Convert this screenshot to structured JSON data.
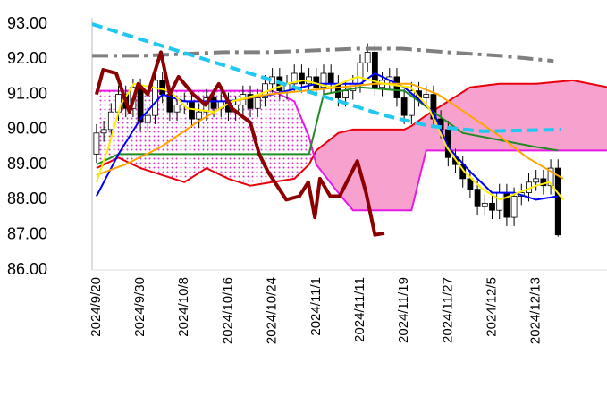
{
  "chart_data": {
    "type": "ichimoku",
    "xlim": [
      -0.6,
      69.8
    ],
    "xticks": [
      {
        "value": 0,
        "label": "2024/9/20"
      },
      {
        "value": 6,
        "label": "2024/9/30"
      },
      {
        "value": 12,
        "label": "2024/10/8"
      },
      {
        "value": 18,
        "label": "2024/10/16"
      },
      {
        "value": 24,
        "label": "2024/10/24"
      },
      {
        "value": 30,
        "label": "2024/11/1"
      },
      {
        "value": 36,
        "label": "2024/11/11"
      },
      {
        "value": 42,
        "label": "2024/11/19"
      },
      {
        "value": 48,
        "label": "2024/11/27"
      },
      {
        "value": 54,
        "label": "2024/12/5"
      },
      {
        "value": 60,
        "label": "2024/12/13"
      }
    ],
    "ylim": [
      86,
      93
    ],
    "yticks": [
      {
        "value": 86,
        "label": "86.00"
      },
      {
        "value": 87,
        "label": "87.00"
      },
      {
        "value": 88,
        "label": "88.00"
      },
      {
        "value": 89,
        "label": "89.00"
      },
      {
        "value": 90,
        "label": "90.00"
      },
      {
        "value": 91,
        "label": "91.00"
      },
      {
        "value": 92,
        "label": "92.00"
      },
      {
        "value": 93,
        "label": "93.00"
      }
    ],
    "cloud": {
      "up_color": "#f7a1cf",
      "down_color": "#d633c8",
      "a_color": "#e8000b",
      "b_color": "#e619e6",
      "x": [
        0,
        3,
        6,
        9,
        12,
        15,
        18,
        21,
        24,
        27,
        29,
        30,
        33,
        35,
        38,
        42,
        43,
        45,
        48,
        51,
        55,
        60,
        65,
        69.8
      ],
      "span_a": [
        88.9,
        89.2,
        88.9,
        88.7,
        88.5,
        88.9,
        88.6,
        88.4,
        88.5,
        88.6,
        89.0,
        89.4,
        89.9,
        90.0,
        90.0,
        90.0,
        90.1,
        90.4,
        90.8,
        91.2,
        91.3,
        91.3,
        91.4,
        91.2
      ],
      "span_b": [
        91.1,
        91.1,
        91.1,
        91.1,
        91.1,
        91.1,
        91.1,
        91.1,
        91.1,
        90.8,
        89.8,
        89.0,
        88.2,
        87.7,
        87.7,
        87.7,
        87.7,
        89.4,
        89.4,
        89.4,
        89.4,
        89.4,
        89.4,
        89.4
      ]
    },
    "candles": {
      "up_color": "#ffffff",
      "down_color": "#000000",
      "open": [
        89.3,
        89.9,
        90.0,
        90.5,
        91.0,
        90.6,
        91.2,
        90.2,
        90.4,
        91.4,
        91.0,
        90.5,
        90.7,
        90.8,
        90.3,
        90.5,
        90.9,
        90.6,
        90.8,
        90.5,
        90.7,
        91.0,
        90.6,
        90.9,
        91.3,
        91.5,
        91.1,
        91.3,
        91.6,
        91.3,
        91.5,
        91.2,
        91.6,
        91.3,
        90.9,
        91.1,
        91.3,
        91.9,
        92.2,
        91.2,
        91.4,
        91.5,
        90.9,
        90.4,
        91.1,
        90.9,
        91.0,
        90.3,
        90.0,
        89.2,
        89.0,
        88.6,
        88.3,
        87.8,
        87.9,
        87.7,
        88.2,
        87.5,
        88.1,
        88.2,
        88.5,
        88.6,
        88.4,
        88.9
      ],
      "high": [
        90.15,
        90.25,
        90.75,
        91.25,
        91.25,
        91.45,
        91.45,
        90.65,
        91.65,
        91.65,
        91.25,
        90.95,
        91.05,
        91.05,
        90.75,
        91.15,
        91.15,
        91.05,
        91.05,
        90.95,
        91.25,
        91.25,
        91.15,
        91.55,
        91.75,
        91.75,
        91.55,
        91.85,
        91.85,
        91.75,
        91.75,
        91.85,
        91.85,
        91.55,
        91.35,
        91.55,
        92.15,
        92.45,
        92.45,
        91.65,
        91.75,
        91.75,
        91.15,
        91.35,
        91.35,
        91.25,
        91.25,
        90.55,
        90.25,
        89.45,
        89.25,
        88.85,
        88.55,
        88.15,
        88.15,
        88.45,
        88.45,
        88.35,
        88.45,
        88.75,
        88.85,
        88.85,
        89.15,
        89.15
      ],
      "low": [
        89.05,
        89.65,
        89.75,
        90.25,
        90.35,
        90.35,
        89.95,
        89.95,
        90.15,
        90.75,
        90.25,
        90.25,
        90.45,
        90.05,
        90.05,
        90.25,
        90.35,
        90.35,
        90.25,
        90.25,
        90.45,
        90.35,
        90.35,
        90.65,
        91.05,
        90.85,
        90.85,
        91.05,
        91.05,
        91.05,
        90.95,
        90.95,
        91.05,
        90.65,
        90.65,
        90.85,
        91.05,
        91.65,
        90.95,
        90.95,
        91.15,
        90.65,
        90.15,
        90.15,
        90.65,
        90.65,
        90.05,
        89.75,
        88.95,
        88.75,
        88.35,
        88.05,
        87.55,
        87.55,
        87.45,
        87.45,
        87.25,
        87.25,
        87.85,
        87.95,
        88.25,
        88.15,
        88.15,
        86.95
      ],
      "close": [
        89.9,
        90.0,
        90.5,
        91.0,
        90.6,
        91.2,
        90.2,
        90.4,
        91.4,
        91.0,
        90.5,
        90.7,
        90.8,
        90.3,
        90.5,
        90.9,
        90.6,
        90.8,
        90.5,
        90.7,
        91.0,
        90.6,
        90.9,
        91.3,
        91.5,
        91.1,
        91.3,
        91.6,
        91.3,
        91.5,
        91.2,
        91.6,
        91.3,
        90.9,
        91.1,
        91.3,
        91.9,
        92.2,
        91.2,
        91.4,
        91.5,
        90.9,
        90.4,
        91.1,
        90.9,
        91.0,
        90.3,
        90.0,
        89.2,
        89.0,
        88.6,
        88.3,
        87.8,
        87.9,
        87.7,
        88.2,
        87.5,
        88.1,
        88.2,
        88.5,
        88.6,
        88.4,
        88.9,
        87.0
      ]
    },
    "lines": [
      {
        "color": "#228b22",
        "width": 2,
        "x": [
          0,
          3,
          29,
          31,
          36,
          42,
          46,
          50,
          55,
          60,
          63
        ],
        "values": [
          89.0,
          89.3,
          89.3,
          91.0,
          91.2,
          91.1,
          90.5,
          89.9,
          89.7,
          89.5,
          89.4
        ]
      },
      {
        "color": "#0000ff",
        "width": 2,
        "x": [
          0,
          3,
          6,
          9,
          12,
          18,
          24,
          30,
          36,
          38,
          42,
          46,
          48,
          51,
          54,
          57,
          60,
          63
        ],
        "values": [
          88.1,
          89.3,
          90.3,
          91.0,
          90.8,
          90.8,
          91.0,
          91.3,
          91.3,
          91.6,
          91.2,
          90.5,
          89.5,
          88.8,
          88.2,
          88.2,
          88.0,
          88.1
        ]
      },
      {
        "color": "#ffa500",
        "width": 2,
        "x": [
          0,
          3.9,
          8.8,
          13.7,
          18.5,
          23.4,
          28.3,
          33.2,
          38,
          42.9,
          46.6,
          50.2,
          55.1,
          58.8,
          63.7
        ],
        "values": [
          88.7,
          89.0,
          89.5,
          90.2,
          90.8,
          91.0,
          91.1,
          91.2,
          91.3,
          91.3,
          91.0,
          90.5,
          89.8,
          89.2,
          88.6
        ]
      },
      {
        "color": "#ffee00",
        "width": 2,
        "x": [
          0,
          1.5,
          3.3,
          5.1,
          7.6,
          10,
          12.4,
          16.1,
          18.5,
          22.2,
          25.9,
          28.3,
          32,
          35.6,
          39.3,
          42.9,
          45.4,
          47.8,
          50.2,
          52.7,
          55.1,
          57.6,
          60,
          61.8,
          63.7
        ],
        "values": [
          88.5,
          89.4,
          90.7,
          91.3,
          91.2,
          91.1,
          90.6,
          90.5,
          90.8,
          91.0,
          91.3,
          91.4,
          91.2,
          91.5,
          91.3,
          91.2,
          90.6,
          89.5,
          88.8,
          88.3,
          88.0,
          88.2,
          88.4,
          88.5,
          88.0
        ]
      },
      {
        "color": "#808080",
        "width": 4,
        "dash": "18 6 4 6",
        "x": [
          -0.6,
          6.3,
          17.3,
          23.4,
          29.5,
          35.6,
          41.7,
          47.8,
          55.1,
          62.4
        ],
        "values": [
          92.1,
          92.1,
          92.2,
          92.2,
          92.25,
          92.3,
          92.3,
          92.2,
          92.1,
          91.95
        ]
      },
      {
        "color": "#1ec8f0",
        "width": 4,
        "dash": "12 6",
        "x": [
          -0.6,
          39.3,
          45.4,
          52.7,
          63.4
        ],
        "values": [
          93.0,
          90.4,
          90.1,
          89.95,
          90.0
        ]
      },
      {
        "color": "#8b0000",
        "width": 4,
        "x": [
          0,
          0.9,
          2.7,
          4.5,
          5.7,
          7,
          8.8,
          10,
          11.2,
          13.2,
          14.9,
          16.7,
          18.5,
          21,
          22.2,
          23.4,
          25.9,
          27.7,
          28.9,
          29.8,
          30.5,
          31.9,
          33.2,
          35.6,
          36.8,
          38,
          39.3
        ],
        "values": [
          91.0,
          91.7,
          91.6,
          90.5,
          91.3,
          91.0,
          92.2,
          91.0,
          91.5,
          91.0,
          90.7,
          91.3,
          90.6,
          90.2,
          89.3,
          88.8,
          88.0,
          88.1,
          88.5,
          87.5,
          88.6,
          88.1,
          88.1,
          89.1,
          88.2,
          87.0,
          87.05
        ]
      }
    ]
  }
}
